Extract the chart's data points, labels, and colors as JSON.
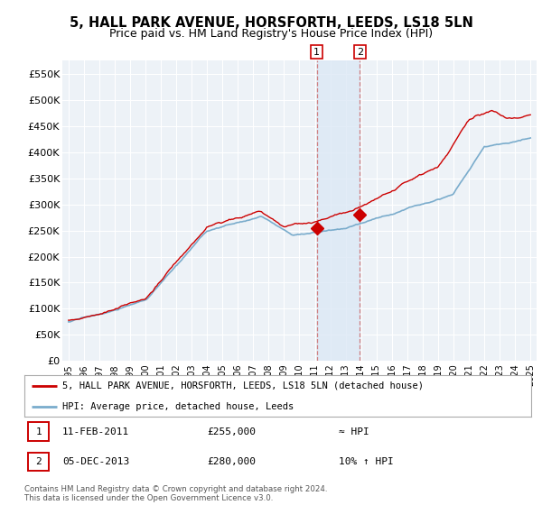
{
  "title": "5, HALL PARK AVENUE, HORSFORTH, LEEDS, LS18 5LN",
  "subtitle": "Price paid vs. HM Land Registry's House Price Index (HPI)",
  "title_fontsize": 10.5,
  "subtitle_fontsize": 9,
  "ylim": [
    0,
    575000
  ],
  "yticks": [
    0,
    50000,
    100000,
    150000,
    200000,
    250000,
    300000,
    350000,
    400000,
    450000,
    500000,
    550000
  ],
  "ytick_labels": [
    "£0",
    "£50K",
    "£100K",
    "£150K",
    "£200K",
    "£250K",
    "£300K",
    "£350K",
    "£400K",
    "£450K",
    "£500K",
    "£550K"
  ],
  "xlim_start": 1994.6,
  "xlim_end": 2025.4,
  "xticks": [
    1995,
    1996,
    1997,
    1998,
    1999,
    2000,
    2001,
    2002,
    2003,
    2004,
    2005,
    2006,
    2007,
    2008,
    2009,
    2010,
    2011,
    2012,
    2013,
    2014,
    2015,
    2016,
    2017,
    2018,
    2019,
    2020,
    2021,
    2022,
    2023,
    2024,
    2025
  ],
  "hpi_fill_color": "#dce8f5",
  "hpi_line_color": "#7aaccc",
  "property_color": "#cc0000",
  "sale1_date": 2011.12,
  "sale1_value": 255000,
  "sale2_date": 2013.92,
  "sale2_value": 280000,
  "legend_property": "5, HALL PARK AVENUE, HORSFORTH, LEEDS, LS18 5LN (detached house)",
  "legend_hpi": "HPI: Average price, detached house, Leeds",
  "annotation1_num": "1",
  "annotation1_date": "11-FEB-2011",
  "annotation1_price": "£255,000",
  "annotation1_rel": "≈ HPI",
  "annotation2_num": "2",
  "annotation2_date": "05-DEC-2013",
  "annotation2_price": "£280,000",
  "annotation2_rel": "10% ↑ HPI",
  "copyright": "Contains HM Land Registry data © Crown copyright and database right 2024.\nThis data is licensed under the Open Government Licence v3.0.",
  "background_color": "#ffffff",
  "plot_bg_color": "#edf2f7",
  "grid_color": "#ffffff"
}
